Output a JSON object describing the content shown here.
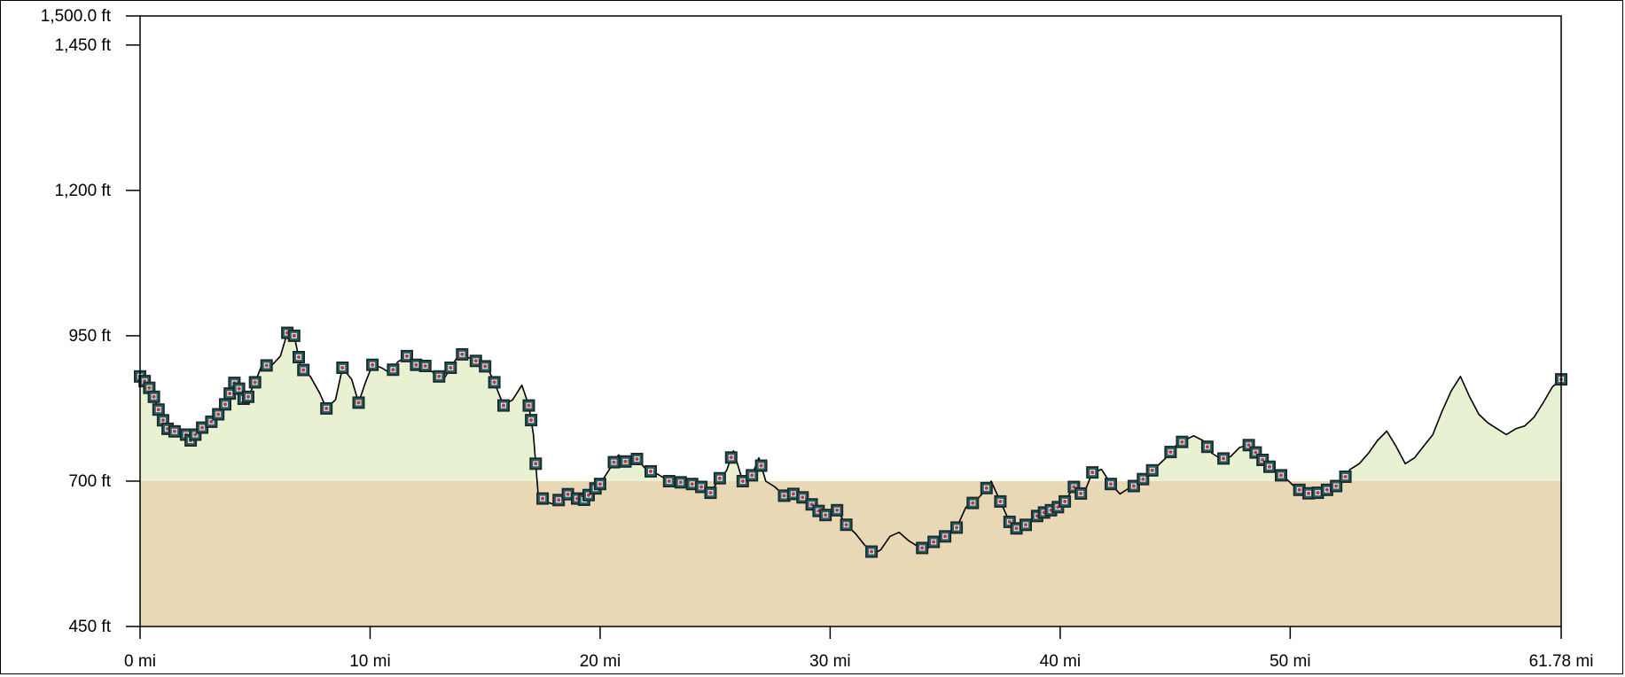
{
  "chart_data": {
    "type": "area",
    "title": "",
    "xlabel": "",
    "ylabel": "",
    "x_unit": "mi",
    "y_unit": "ft",
    "xlim": [
      0,
      61.78
    ],
    "ylim": [
      450,
      1500
    ],
    "x_ticks": [
      {
        "value": 0,
        "label": "0 mi"
      },
      {
        "value": 10,
        "label": "10 mi"
      },
      {
        "value": 20,
        "label": "20 mi"
      },
      {
        "value": 30,
        "label": "30 mi"
      },
      {
        "value": 40,
        "label": "40 mi"
      },
      {
        "value": 50,
        "label": "50 mi"
      },
      {
        "value": 61.78,
        "label": "61.78 mi"
      }
    ],
    "y_ticks": [
      {
        "value": 450,
        "label": "450 ft"
      },
      {
        "value": 700,
        "label": "700 ft"
      },
      {
        "value": 950,
        "label": "950 ft"
      },
      {
        "value": 1200,
        "label": "1,200 ft"
      },
      {
        "value": 1450,
        "label": "1,450 ft"
      },
      {
        "value": 1500,
        "label": "1,500.0 ft"
      }
    ],
    "baseline_band": {
      "from": 450,
      "to": 700,
      "color": "#e8d8b6"
    },
    "fill_color": "#e8f2d2",
    "line_color": "#000000",
    "marker_color": "#2b6466",
    "marker_accent": "#d8303a",
    "grid": false,
    "legend": "none",
    "series": [
      {
        "points": [
          [
            0,
            880
          ],
          [
            0.3,
            868
          ],
          [
            0.6,
            845
          ],
          [
            0.9,
            812
          ],
          [
            1.2,
            790
          ],
          [
            1.6,
            784
          ],
          [
            2,
            780
          ],
          [
            2.2,
            770
          ],
          [
            2.6,
            790
          ],
          [
            3,
            798
          ],
          [
            3.4,
            815
          ],
          [
            3.7,
            832
          ],
          [
            4,
            860
          ],
          [
            4.2,
            878
          ],
          [
            4.4,
            840
          ],
          [
            4.7,
            845
          ],
          [
            5,
            870
          ],
          [
            5.3,
            900
          ],
          [
            5.7,
            898
          ],
          [
            6.1,
            915
          ],
          [
            6.4,
            955
          ],
          [
            6.7,
            950
          ],
          [
            7,
            895
          ],
          [
            7.4,
            880
          ],
          [
            7.8,
            852
          ],
          [
            8.1,
            825
          ],
          [
            8.5,
            840
          ],
          [
            8.8,
            895
          ],
          [
            9.2,
            875
          ],
          [
            9.5,
            835
          ],
          [
            9.8,
            870
          ],
          [
            10.1,
            900
          ],
          [
            10.5,
            895
          ],
          [
            10.9,
            885
          ],
          [
            11.2,
            905
          ],
          [
            11.6,
            915
          ],
          [
            12,
            900
          ],
          [
            12.4,
            898
          ],
          [
            12.8,
            885
          ],
          [
            13.2,
            875
          ],
          [
            13.5,
            895
          ],
          [
            13.9,
            920
          ],
          [
            14.3,
            912
          ],
          [
            14.7,
            905
          ],
          [
            15.1,
            895
          ],
          [
            15.4,
            870
          ],
          [
            15.8,
            830
          ],
          [
            16.2,
            840
          ],
          [
            16.6,
            865
          ],
          [
            16.9,
            830
          ],
          [
            17.1,
            780
          ],
          [
            17.3,
            680
          ],
          [
            17.6,
            665
          ],
          [
            18,
            660
          ],
          [
            18.4,
            675
          ],
          [
            18.8,
            680
          ],
          [
            19,
            670
          ],
          [
            19.3,
            668
          ],
          [
            19.6,
            680
          ],
          [
            20,
            695
          ],
          [
            20.4,
            720
          ],
          [
            20.8,
            745
          ],
          [
            21.2,
            730
          ],
          [
            21.6,
            738
          ],
          [
            22,
            720
          ],
          [
            22.5,
            712
          ],
          [
            23,
            700
          ],
          [
            23.5,
            698
          ],
          [
            24,
            695
          ],
          [
            24.4,
            690
          ],
          [
            24.8,
            680
          ],
          [
            25.2,
            705
          ],
          [
            25.5,
            718
          ],
          [
            25.8,
            752
          ],
          [
            26.2,
            700
          ],
          [
            26.6,
            710
          ],
          [
            26.9,
            740
          ],
          [
            27.2,
            700
          ],
          [
            27.6,
            690
          ],
          [
            28,
            675
          ],
          [
            28.4,
            678
          ],
          [
            28.8,
            672
          ],
          [
            29.2,
            660
          ],
          [
            29.6,
            645
          ],
          [
            29.9,
            640
          ],
          [
            30.3,
            650
          ],
          [
            30.7,
            625
          ],
          [
            31.1,
            610
          ],
          [
            31.5,
            590
          ],
          [
            31.9,
            575
          ],
          [
            32.2,
            582
          ],
          [
            32.6,
            605
          ],
          [
            33,
            612
          ],
          [
            33.4,
            598
          ],
          [
            33.8,
            588
          ],
          [
            34.2,
            582
          ],
          [
            34.6,
            600
          ],
          [
            35,
            605
          ],
          [
            35.5,
            620
          ],
          [
            35.9,
            655
          ],
          [
            36.3,
            665
          ],
          [
            36.7,
            682
          ],
          [
            37,
            700
          ],
          [
            37.4,
            665
          ],
          [
            37.8,
            630
          ],
          [
            38.2,
            615
          ],
          [
            38.6,
            628
          ],
          [
            39,
            640
          ],
          [
            39.4,
            648
          ],
          [
            39.8,
            652
          ],
          [
            40.2,
            665
          ],
          [
            40.6,
            690
          ],
          [
            41,
            675
          ],
          [
            41.4,
            715
          ],
          [
            41.8,
            720
          ],
          [
            42.2,
            695
          ],
          [
            42.6,
            678
          ],
          [
            43,
            688
          ],
          [
            43.4,
            695
          ],
          [
            43.8,
            712
          ],
          [
            44.2,
            725
          ],
          [
            44.6,
            740
          ],
          [
            45,
            760
          ],
          [
            45.4,
            770
          ],
          [
            45.8,
            778
          ],
          [
            46.2,
            770
          ],
          [
            46.6,
            748
          ],
          [
            47,
            738
          ],
          [
            47.4,
            742
          ],
          [
            47.8,
            758
          ],
          [
            48.2,
            762
          ],
          [
            48.6,
            745
          ],
          [
            49,
            728
          ],
          [
            49.4,
            715
          ],
          [
            49.8,
            705
          ],
          [
            50.2,
            690
          ],
          [
            50.6,
            680
          ],
          [
            51,
            678
          ],
          [
            51.4,
            682
          ],
          [
            51.8,
            688
          ],
          [
            52.2,
            695
          ],
          [
            52.6,
            720
          ],
          [
            53,
            730
          ],
          [
            53.4,
            748
          ],
          [
            53.8,
            770
          ],
          [
            54.2,
            786
          ],
          [
            54.6,
            760
          ],
          [
            55,
            730
          ],
          [
            55.4,
            740
          ],
          [
            55.8,
            760
          ],
          [
            56.2,
            780
          ],
          [
            56.6,
            820
          ],
          [
            57,
            855
          ],
          [
            57.4,
            880
          ],
          [
            57.8,
            845
          ],
          [
            58.2,
            815
          ],
          [
            58.6,
            800
          ],
          [
            59,
            790
          ],
          [
            59.4,
            780
          ],
          [
            59.8,
            790
          ],
          [
            60.2,
            795
          ],
          [
            60.6,
            810
          ],
          [
            61,
            835
          ],
          [
            61.4,
            862
          ],
          [
            61.78,
            875
          ]
        ],
        "marker_x": [
          0,
          0.2,
          0.4,
          0.6,
          0.8,
          1,
          1.2,
          1.5,
          2,
          2.2,
          2.4,
          2.7,
          3.1,
          3.4,
          3.7,
          3.9,
          4.1,
          4.3,
          4.5,
          4.7,
          5,
          5.5,
          6.4,
          6.7,
          6.9,
          7.1,
          8.1,
          8.8,
          9.5,
          10.1,
          11,
          11.6,
          12,
          12.4,
          13,
          13.5,
          14,
          14.6,
          15,
          15.4,
          15.8,
          16.9,
          17,
          17.2,
          17.5,
          18.2,
          18.6,
          19,
          19.3,
          19.5,
          19.8,
          20,
          20.6,
          21.1,
          21.6,
          22.2,
          23,
          23.5,
          24,
          24.4,
          24.8,
          25.2,
          25.7,
          26.2,
          26.6,
          27,
          28,
          28.4,
          28.8,
          29.2,
          29.5,
          29.8,
          30.3,
          30.7,
          31.8,
          34,
          34.5,
          35,
          35.5,
          36.2,
          36.8,
          37.4,
          37.8,
          38.1,
          38.5,
          39,
          39.3,
          39.6,
          39.9,
          40.2,
          40.6,
          40.9,
          41.4,
          42.2,
          43.2,
          43.6,
          44,
          44.8,
          45.3,
          46.4,
          47.1,
          48.2,
          48.5,
          48.8,
          49.1,
          49.6,
          50.4,
          50.8,
          51.2,
          51.6,
          52,
          52.4,
          61.78
        ]
      }
    ]
  }
}
